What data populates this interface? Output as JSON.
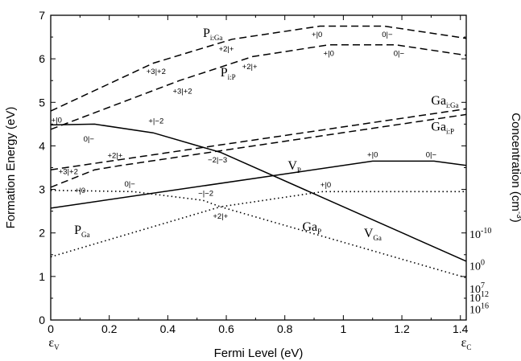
{
  "chart_data": {
    "type": "line",
    "xlabel": "Fermi Level (eV)",
    "ylabel": "Formation Energy (eV)",
    "y2label": "Concentration (cm",
    "y2label_sup": "-3",
    "y2label_end": ")",
    "xlim": [
      0,
      1.42
    ],
    "ylim": [
      0,
      7
    ],
    "xticks": [
      "0",
      "0.2",
      "0.4",
      "0.6",
      "0.8",
      "1",
      "1.2",
      "1.4"
    ],
    "yticks": [
      "0",
      "1",
      "2",
      "3",
      "4",
      "5",
      "6",
      "7"
    ],
    "x_end_labels": [
      {
        "main": "ε",
        "sub": "V"
      },
      {
        "main": "ε",
        "sub": "C"
      }
    ],
    "series": [
      {
        "name": "P",
        "sub": "i:Ga",
        "style": "dashed",
        "x": [
          0,
          0.35,
          0.62,
          0.92,
          1.14,
          1.42
        ],
        "y": [
          4.8,
          5.9,
          6.45,
          6.75,
          6.75,
          6.47
        ]
      },
      {
        "name": "P",
        "sub": "i:P",
        "style": "dashed",
        "x": [
          0,
          0.44,
          0.69,
          0.95,
          1.18,
          1.42
        ],
        "y": [
          4.38,
          5.5,
          6.05,
          6.32,
          6.32,
          6.08
        ]
      },
      {
        "name": "Ga",
        "sub": "i:Ga",
        "style": "dashed",
        "x": [
          0,
          1.42
        ],
        "y": [
          3.45,
          4.85
        ]
      },
      {
        "name": "Ga",
        "sub": "i:P",
        "style": "dashed",
        "x": [
          0,
          0.15,
          0.24,
          1.42
        ],
        "y": [
          3.05,
          3.45,
          3.55,
          4.72
        ]
      },
      {
        "name": "V",
        "sub": "P",
        "style": "solid",
        "x": [
          0,
          1.1,
          1.31,
          1.42
        ],
        "y": [
          2.57,
          3.65,
          3.65,
          3.55
        ]
      },
      {
        "name": "V",
        "sub": "Ga",
        "style": "solid",
        "x": [
          0,
          0.15,
          0.35,
          0.58,
          1.42
        ],
        "y": [
          4.48,
          4.5,
          4.3,
          3.85,
          1.35
        ]
      },
      {
        "name": "Ga",
        "sub": "P",
        "style": "dotted",
        "x": [
          0,
          0.28,
          0.52,
          0.58,
          0.93,
          1.42
        ],
        "y": [
          2.98,
          2.95,
          2.75,
          2.6,
          2.95,
          2.95
        ]
      },
      {
        "name": "P",
        "sub": "Ga",
        "style": "dotted",
        "x": [
          0,
          0.58,
          1.42
        ],
        "y": [
          1.45,
          2.6,
          0.97
        ]
      }
    ],
    "transition_labels": [
      {
        "text": "+|0",
        "x": 0.02,
        "y": 4.53
      },
      {
        "text": "0|−",
        "x": 0.13,
        "y": 4.1
      },
      {
        "text": "+|−2",
        "x": 0.36,
        "y": 4.52
      },
      {
        "text": "+3|+2",
        "x": 0.06,
        "y": 3.35
      },
      {
        "text": "+2|+",
        "x": 0.22,
        "y": 3.72
      },
      {
        "text": "0|−",
        "x": 0.27,
        "y": 3.07
      },
      {
        "text": "+|0",
        "x": 0.1,
        "y": 2.92
      },
      {
        "text": "+3|+2",
        "x": 0.36,
        "y": 5.65
      },
      {
        "text": "+3|+2",
        "x": 0.45,
        "y": 5.2
      },
      {
        "text": "+2|+",
        "x": 0.6,
        "y": 6.17
      },
      {
        "text": "+2|+",
        "x": 0.68,
        "y": 5.76
      },
      {
        "text": "+|0",
        "x": 0.91,
        "y": 6.5
      },
      {
        "text": "+|0",
        "x": 0.95,
        "y": 6.07
      },
      {
        "text": "0|−",
        "x": 1.15,
        "y": 6.5
      },
      {
        "text": "0|−",
        "x": 1.19,
        "y": 6.07
      },
      {
        "text": "−2|−3",
        "x": 0.57,
        "y": 3.62
      },
      {
        "text": "+|0",
        "x": 1.1,
        "y": 3.74
      },
      {
        "text": "0|−",
        "x": 1.3,
        "y": 3.74
      },
      {
        "text": "+|0",
        "x": 0.94,
        "y": 3.05
      },
      {
        "text": "−|−2",
        "x": 0.53,
        "y": 2.85
      },
      {
        "text": "+2|+",
        "x": 0.58,
        "y": 2.33
      }
    ],
    "concentration_labels": [
      {
        "base": "10",
        "exp": "-10",
        "at_y": 1.98
      },
      {
        "base": "10",
        "exp": "0",
        "at_y": 1.25
      },
      {
        "base": "10",
        "exp": "7",
        "at_y": 0.72
      },
      {
        "base": "10",
        "exp": "12",
        "at_y": 0.52
      },
      {
        "base": "10",
        "exp": "16",
        "at_y": 0.25
      }
    ]
  }
}
